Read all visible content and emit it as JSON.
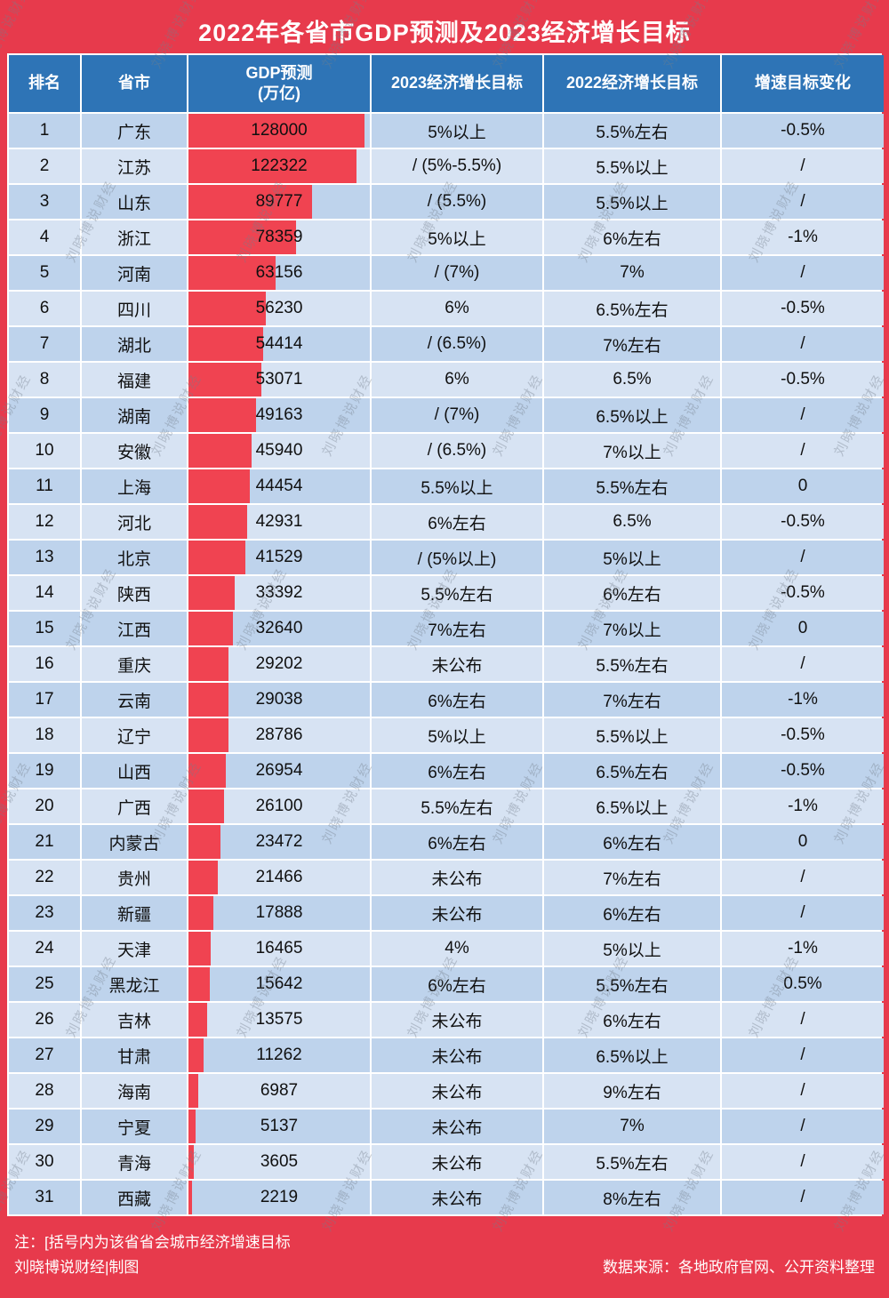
{
  "title": "2022年各省市GDP预测及2023经济增长目标",
  "watermark": "刘晓博说财经",
  "colors": {
    "frame_red": "#e73a4c",
    "bar_red": "#f04351",
    "header_blue": "#2e74b6",
    "row_odd": "#bed3ec",
    "row_even": "#d7e3f3"
  },
  "headers": {
    "rank": "排名",
    "province": "省市",
    "gdp_line1": "GDP预测",
    "gdp_line2": "(万亿)",
    "target_2023": "2023经济增长目标",
    "target_2022": "2022经济增长目标",
    "change": "增速目标变化"
  },
  "chart_data": {
    "type": "table",
    "bar_metric": "gdp",
    "bar_axis_max": 128000,
    "columns": [
      "排名",
      "省市",
      "GDP预测(万亿)",
      "2023经济增长目标",
      "2022经济增长目标",
      "增速目标变化"
    ],
    "rows": [
      {
        "rank": 1,
        "province": "广东",
        "gdp": 128000,
        "target_2023": "5%以上",
        "target_2022": "5.5%左右",
        "change": "-0.5%"
      },
      {
        "rank": 2,
        "province": "江苏",
        "gdp": 122322,
        "target_2023": "/ (5%-5.5%)",
        "target_2022": "5.5%以上",
        "change": "/"
      },
      {
        "rank": 3,
        "province": "山东",
        "gdp": 89777,
        "target_2023": "/ (5.5%)",
        "target_2022": "5.5%以上",
        "change": "/"
      },
      {
        "rank": 4,
        "province": "浙江",
        "gdp": 78359,
        "target_2023": "5%以上",
        "target_2022": "6%左右",
        "change": "-1%"
      },
      {
        "rank": 5,
        "province": "河南",
        "gdp": 63156,
        "target_2023": "/ (7%)",
        "target_2022": "7%",
        "change": "/"
      },
      {
        "rank": 6,
        "province": "四川",
        "gdp": 56230,
        "target_2023": "6%",
        "target_2022": "6.5%左右",
        "change": "-0.5%"
      },
      {
        "rank": 7,
        "province": "湖北",
        "gdp": 54414,
        "target_2023": "/ (6.5%)",
        "target_2022": "7%左右",
        "change": "/"
      },
      {
        "rank": 8,
        "province": "福建",
        "gdp": 53071,
        "target_2023": "6%",
        "target_2022": "6.5%",
        "change": "-0.5%"
      },
      {
        "rank": 9,
        "province": "湖南",
        "gdp": 49163,
        "target_2023": "/ (7%)",
        "target_2022": "6.5%以上",
        "change": "/"
      },
      {
        "rank": 10,
        "province": "安徽",
        "gdp": 45940,
        "target_2023": "/ (6.5%)",
        "target_2022": "7%以上",
        "change": "/"
      },
      {
        "rank": 11,
        "province": "上海",
        "gdp": 44454,
        "target_2023": "5.5%以上",
        "target_2022": "5.5%左右",
        "change": "0"
      },
      {
        "rank": 12,
        "province": "河北",
        "gdp": 42931,
        "target_2023": "6%左右",
        "target_2022": "6.5%",
        "change": "-0.5%"
      },
      {
        "rank": 13,
        "province": "北京",
        "gdp": 41529,
        "target_2023": "/ (5%以上)",
        "target_2022": "5%以上",
        "change": "/"
      },
      {
        "rank": 14,
        "province": "陕西",
        "gdp": 33392,
        "target_2023": "5.5%左右",
        "target_2022": "6%左右",
        "change": "-0.5%"
      },
      {
        "rank": 15,
        "province": "江西",
        "gdp": 32640,
        "target_2023": "7%左右",
        "target_2022": "7%以上",
        "change": "0"
      },
      {
        "rank": 16,
        "province": "重庆",
        "gdp": 29202,
        "target_2023": "未公布",
        "target_2022": "5.5%左右",
        "change": "/"
      },
      {
        "rank": 17,
        "province": "云南",
        "gdp": 29038,
        "target_2023": "6%左右",
        "target_2022": "7%左右",
        "change": "-1%"
      },
      {
        "rank": 18,
        "province": "辽宁",
        "gdp": 28786,
        "target_2023": "5%以上",
        "target_2022": "5.5%以上",
        "change": "-0.5%"
      },
      {
        "rank": 19,
        "province": "山西",
        "gdp": 26954,
        "target_2023": "6%左右",
        "target_2022": "6.5%左右",
        "change": "-0.5%"
      },
      {
        "rank": 20,
        "province": "广西",
        "gdp": 26100,
        "target_2023": "5.5%左右",
        "target_2022": "6.5%以上",
        "change": "-1%"
      },
      {
        "rank": 21,
        "province": "内蒙古",
        "gdp": 23472,
        "target_2023": "6%左右",
        "target_2022": "6%左右",
        "change": "0"
      },
      {
        "rank": 22,
        "province": "贵州",
        "gdp": 21466,
        "target_2023": "未公布",
        "target_2022": "7%左右",
        "change": "/"
      },
      {
        "rank": 23,
        "province": "新疆",
        "gdp": 17888,
        "target_2023": "未公布",
        "target_2022": "6%左右",
        "change": "/"
      },
      {
        "rank": 24,
        "province": "天津",
        "gdp": 16465,
        "target_2023": "4%",
        "target_2022": "5%以上",
        "change": "-1%"
      },
      {
        "rank": 25,
        "province": "黑龙江",
        "gdp": 15642,
        "target_2023": "6%左右",
        "target_2022": "5.5%左右",
        "change": "0.5%"
      },
      {
        "rank": 26,
        "province": "吉林",
        "gdp": 13575,
        "target_2023": "未公布",
        "target_2022": "6%左右",
        "change": "/"
      },
      {
        "rank": 27,
        "province": "甘肃",
        "gdp": 11262,
        "target_2023": "未公布",
        "target_2022": "6.5%以上",
        "change": "/"
      },
      {
        "rank": 28,
        "province": "海南",
        "gdp": 6987,
        "target_2023": "未公布",
        "target_2022": "9%左右",
        "change": "/"
      },
      {
        "rank": 29,
        "province": "宁夏",
        "gdp": 5137,
        "target_2023": "未公布",
        "target_2022": "7%",
        "change": "/"
      },
      {
        "rank": 30,
        "province": "青海",
        "gdp": 3605,
        "target_2023": "未公布",
        "target_2022": "5.5%左右",
        "change": "/"
      },
      {
        "rank": 31,
        "province": "西藏",
        "gdp": 2219,
        "target_2023": "未公布",
        "target_2022": "8%左右",
        "change": "/"
      }
    ]
  },
  "footer": {
    "note": "注：[括号内为该省省会城市经济增速目标",
    "credit": "刘晓博说财经|制图",
    "source": "数据来源：各地政府官网、公开资料整理"
  }
}
